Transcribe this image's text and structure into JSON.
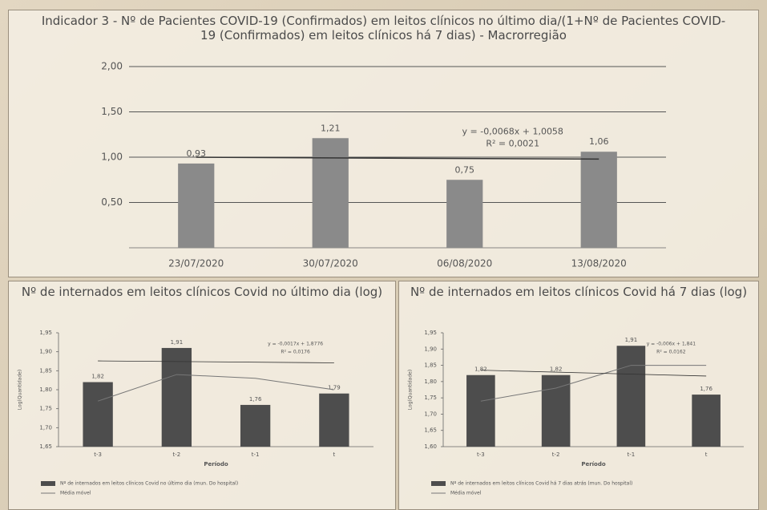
{
  "chart_data": [
    {
      "type": "bar",
      "title": "Indicador 3 - Nº de Pacientes COVID-19 (Confirmados) em leitos clínicos no último dia/(1+Nº de Pacientes COVID-19 (Confirmados) em leitos clínicos há 7 dias) - Macrorregião",
      "categories": [
        "23/07/2020",
        "30/07/2020",
        "06/08/2020",
        "13/08/2020"
      ],
      "values": [
        0.93,
        1.21,
        0.75,
        1.06
      ],
      "value_labels": [
        "0,93",
        "1,21",
        "0,75",
        "1,06"
      ],
      "color": "#8a8a8a",
      "ylim": [
        0,
        2
      ],
      "yticks": [
        {
          "value": 0.5,
          "label": "0,50"
        },
        {
          "value": 1,
          "label": "1,00"
        },
        {
          "value": 1.5,
          "label": "1,50"
        },
        {
          "value": 2,
          "label": "2,00"
        }
      ],
      "grid": true,
      "trendline": {
        "slope": -0.0068,
        "intercept": 1.0058,
        "label": "y = -0,0068x + 1,0058",
        "r2": 0.0021,
        "r2_label": "R² = 0,0021"
      }
    },
    {
      "type": "bar",
      "title": "Nº de internados em leitos clínicos Covid no último dia (log)",
      "categories": [
        "t-3",
        "t-2",
        "t-1",
        "t"
      ],
      "xlabel": "Período",
      "ylabel": "Log(Quantidade)",
      "series": [
        {
          "name": "Nº de internados em leitos clínicos Covid no último dia (mun. Do hospital)",
          "color": "#4d4d4d",
          "values": [
            1.82,
            1.91,
            1.76,
            1.79
          ],
          "value_labels": [
            "1,82",
            "1,91",
            "1,76",
            "1,79"
          ]
        },
        {
          "name": "Média móvel",
          "color": "#777777",
          "type": "line",
          "values": [
            1.77,
            1.84,
            1.83,
            1.8
          ]
        }
      ],
      "ylim": [
        1.65,
        1.95
      ],
      "yticks": [
        {
          "value": 1.65,
          "label": "1,65"
        },
        {
          "value": 1.7,
          "label": "1,70"
        },
        {
          "value": 1.75,
          "label": "1,75"
        },
        {
          "value": 1.8,
          "label": "1,80"
        },
        {
          "value": 1.85,
          "label": "1,85"
        },
        {
          "value": 1.9,
          "label": "1,90"
        },
        {
          "value": 1.95,
          "label": "1,95"
        }
      ],
      "grid": false,
      "trendline": {
        "slope": -0.0017,
        "intercept": 1.8776,
        "label": "y = -0,0017x + 1,8776",
        "r2": 0.0176,
        "r2_label": "R² = 0,0176"
      }
    },
    {
      "type": "bar",
      "title": "Nº de internados em leitos clínicos Covid há 7 dias (log)",
      "categories": [
        "t-3",
        "t-2",
        "t-1",
        "t"
      ],
      "xlabel": "Período",
      "ylabel": "Log(Quantidade)",
      "series": [
        {
          "name": "Nº de internados em leitos clínicos Covid há 7 dias atrás (mun. Do hospital)",
          "color": "#4d4d4d",
          "values": [
            1.82,
            1.82,
            1.91,
            1.76
          ],
          "value_labels": [
            "1,82",
            "1,82",
            "1,91",
            "1,76"
          ]
        },
        {
          "name": "Média móvel",
          "color": "#777777",
          "type": "line",
          "values": [
            1.74,
            1.78,
            1.85,
            1.85
          ]
        }
      ],
      "ylim": [
        1.6,
        1.95
      ],
      "yticks": [
        {
          "value": 1.6,
          "label": "1,60"
        },
        {
          "value": 1.65,
          "label": "1,65"
        },
        {
          "value": 1.7,
          "label": "1,70"
        },
        {
          "value": 1.75,
          "label": "1,75"
        },
        {
          "value": 1.8,
          "label": "1,80"
        },
        {
          "value": 1.85,
          "label": "1,85"
        },
        {
          "value": 1.9,
          "label": "1,90"
        },
        {
          "value": 1.95,
          "label": "1,95"
        }
      ],
      "grid": false,
      "trendline": {
        "slope": -0.006,
        "intercept": 1.841,
        "label": "y = -0,006x + 1,841",
        "r2": 0.0162,
        "r2_label": "R² = 0,0162"
      }
    }
  ]
}
